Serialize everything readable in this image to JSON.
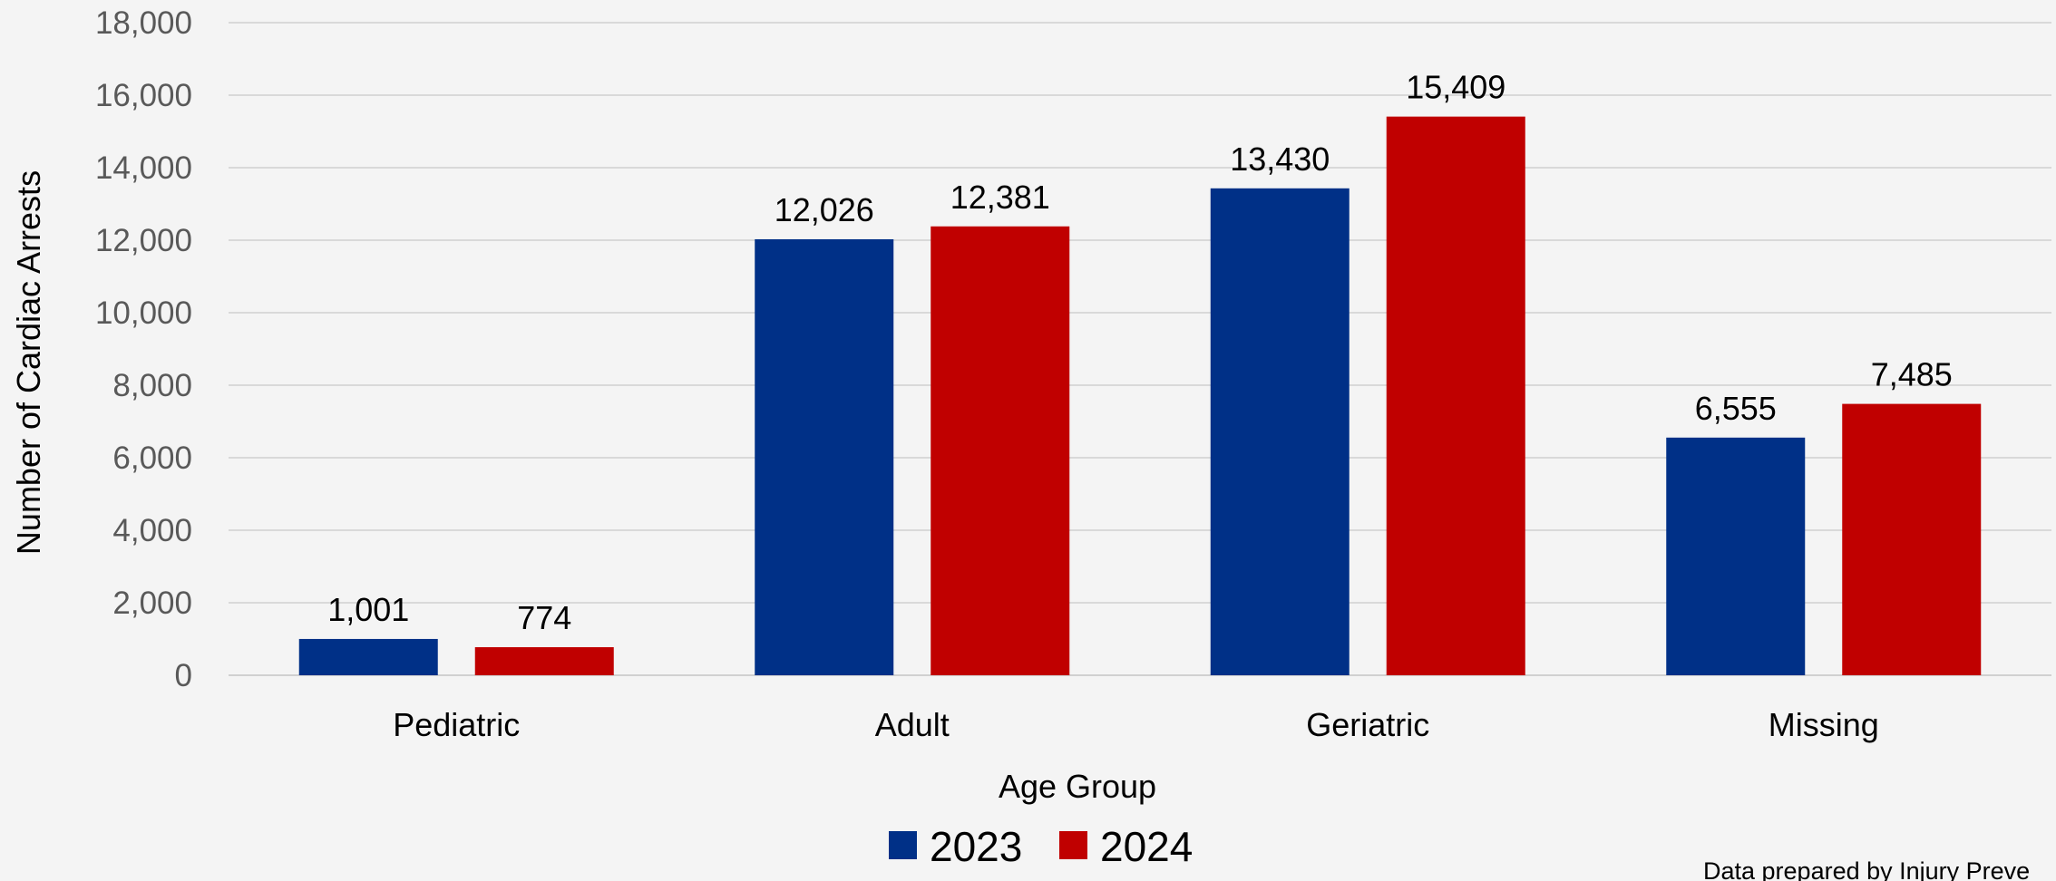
{
  "chart_data": {
    "type": "bar",
    "title": "",
    "xlabel": "Age Group",
    "ylabel": "Number of Cardiac Arrests",
    "categories": [
      "Pediatric",
      "Adult",
      "Geriatric",
      "Missing"
    ],
    "series": [
      {
        "name": "2023",
        "color": "#003087",
        "values": [
          1001,
          12026,
          13430,
          6555
        ]
      },
      {
        "name": "2024",
        "color": "#c00000",
        "values": [
          774,
          12381,
          15409,
          7485
        ]
      }
    ],
    "ylim": [
      0,
      18000
    ],
    "yticks": [
      0,
      2000,
      4000,
      6000,
      8000,
      10000,
      12000,
      14000,
      16000,
      18000
    ],
    "ytick_labels": [
      "0",
      "2,000",
      "4,000",
      "6,000",
      "8,000",
      "10,000",
      "12,000",
      "14,000",
      "16,000",
      "18,000"
    ],
    "data_labels": [
      [
        "1,001",
        "12,026",
        "13,430",
        "6,555"
      ],
      [
        "774",
        "12,381",
        "15,409",
        "7,485"
      ]
    ],
    "grid": true,
    "legend": "bottom",
    "footnote": "Data prepared by Injury Preve"
  }
}
